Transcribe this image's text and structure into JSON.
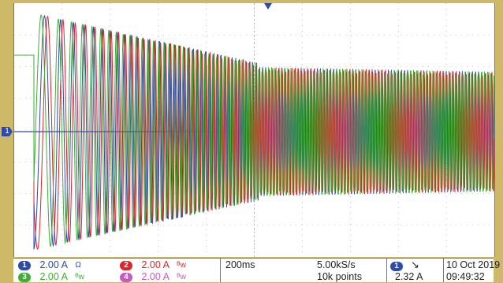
{
  "channels": [
    {
      "id": "1",
      "scale": "2.00 A",
      "suffix": "Ω",
      "color": "#2f4aa8"
    },
    {
      "id": "2",
      "scale": "2.00 A",
      "suffix": "ᴮw",
      "color": "#e0252a"
    },
    {
      "id": "3",
      "scale": "2.00 A",
      "suffix": "ᴮw",
      "color": "#3fae35"
    },
    {
      "id": "4",
      "scale": "2.00 A",
      "suffix": "ᴮw",
      "color": "#c45bbf"
    }
  ],
  "ground_marker": "1",
  "timebase": "200ms",
  "sample_rate": "5.00kS/s",
  "record_length": "10k points",
  "trigger": {
    "source": "1",
    "slope_icon": "falling-edge",
    "level": "2.32 A"
  },
  "date": "10 Oct  2019",
  "time": "09:49:32",
  "background_color": "#cdb968"
}
